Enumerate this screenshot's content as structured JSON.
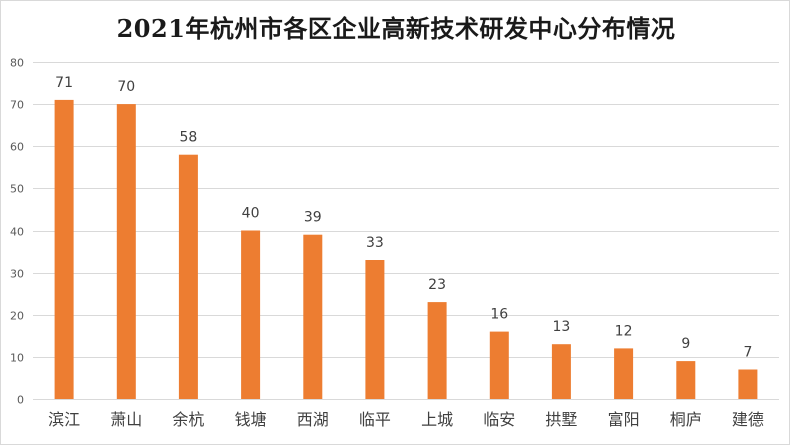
{
  "chart_data": {
    "type": "bar",
    "title": "2021年杭州市各区企业高新技术研发中心分布情况",
    "categories": [
      "滨江",
      "萧山",
      "余杭",
      "钱塘",
      "西湖",
      "临平",
      "上城",
      "临安",
      "拱墅",
      "富阳",
      "桐庐",
      "建德"
    ],
    "values": [
      71,
      70,
      58,
      40,
      39,
      33,
      23,
      16,
      13,
      12,
      9,
      7
    ],
    "ylim": [
      0,
      80
    ],
    "yticks": [
      0,
      10,
      20,
      30,
      40,
      50,
      60,
      70,
      80
    ],
    "grid": true,
    "legend": "none",
    "bar_color": "#ED7D31"
  }
}
